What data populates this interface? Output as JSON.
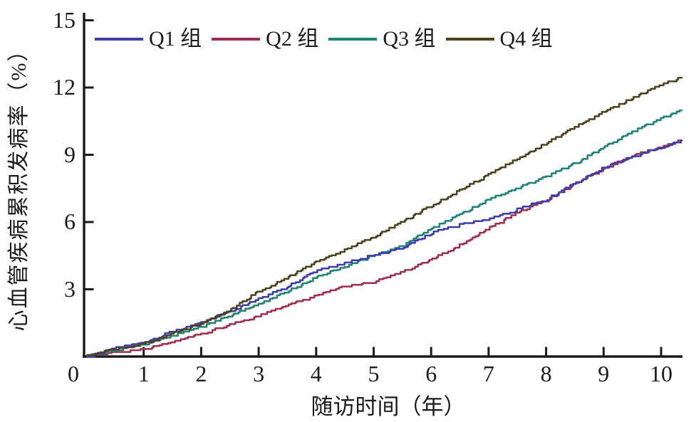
{
  "figure": {
    "background": "#ffffff",
    "axis_color": "#1a1a1a",
    "text_color": "#1b1b1b"
  },
  "chart_data": {
    "type": "line",
    "style": "kaplan-meier-step",
    "title": "",
    "xlabel": "随访时间（年）",
    "ylabel": "心血管疾病累积发病率（%）",
    "xlim": [
      0,
      10.4
    ],
    "ylim": [
      0,
      15.5
    ],
    "x_ticks": [
      0,
      1,
      2,
      3,
      4,
      5,
      6,
      7,
      8,
      9,
      10
    ],
    "y_ticks": [
      3,
      6,
      9,
      12,
      15
    ],
    "origin_label": "0",
    "grid": false,
    "legend_position": "top-inside-horizontal",
    "x": [
      0,
      0.5,
      1,
      1.5,
      2,
      2.5,
      3,
      3.5,
      4,
      4.5,
      5,
      5.5,
      6,
      6.5,
      7,
      7.5,
      8,
      8.5,
      9,
      9.5,
      10,
      10.37
    ],
    "series": [
      {
        "name": "Q1 组",
        "color": "#3f3da8",
        "values": [
          0,
          0.35,
          0.6,
          1.1,
          1.5,
          2.0,
          2.55,
          3.1,
          3.8,
          4.15,
          4.5,
          4.8,
          5.5,
          5.85,
          6.1,
          6.55,
          7.0,
          7.7,
          8.4,
          8.9,
          9.3,
          9.6
        ]
      },
      {
        "name": "Q2 组",
        "color": "#9e2f50",
        "values": [
          0,
          0.15,
          0.3,
          0.6,
          1.0,
          1.4,
          1.8,
          2.25,
          2.7,
          3.1,
          3.3,
          3.75,
          4.3,
          4.95,
          5.7,
          6.4,
          6.95,
          7.7,
          8.35,
          8.95,
          9.3,
          9.65
        ]
      },
      {
        "name": "Q3 组",
        "color": "#1f8476",
        "values": [
          0,
          0.25,
          0.5,
          0.9,
          1.3,
          1.8,
          2.3,
          2.9,
          3.5,
          4.0,
          4.5,
          4.9,
          5.7,
          6.3,
          7.0,
          7.5,
          8.0,
          8.6,
          9.3,
          10.0,
          10.6,
          11.0
        ]
      },
      {
        "name": "Q4 组",
        "color": "#4b431d",
        "values": [
          0,
          0.3,
          0.55,
          1.0,
          1.45,
          2.05,
          2.9,
          3.5,
          4.2,
          4.75,
          5.3,
          6.0,
          6.7,
          7.4,
          8.1,
          8.8,
          9.5,
          10.2,
          10.9,
          11.5,
          12.1,
          12.45
        ]
      }
    ]
  }
}
